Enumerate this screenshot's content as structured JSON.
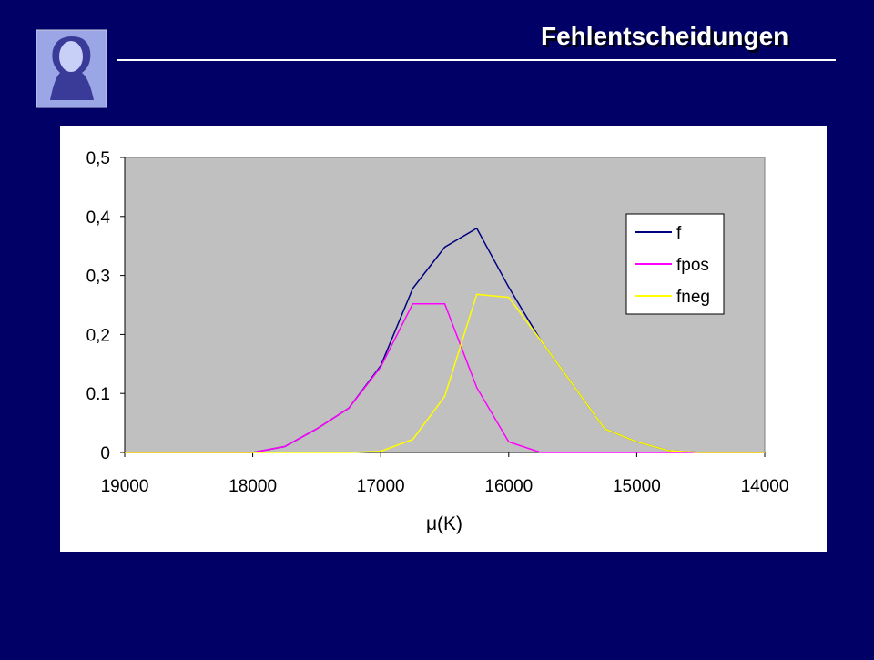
{
  "slide_title": "Fehlentscheidungen",
  "chart_data": {
    "type": "line",
    "x_label": "μ(K)",
    "x": [
      19000,
      18750,
      18500,
      18250,
      18000,
      17750,
      17500,
      17250,
      17000,
      16750,
      16500,
      16250,
      16000,
      15750,
      15500,
      15250,
      15000,
      14750,
      14500,
      14250,
      14000
    ],
    "series": [
      {
        "name": "f",
        "color": "#000080",
        "values": [
          0,
          0,
          0,
          0,
          0,
          0.01,
          0.04,
          0.075,
          0.147,
          0.278,
          0.348,
          0.38,
          0.28,
          0.19,
          0.115,
          0.04,
          0.018,
          0.003,
          0,
          0,
          0
        ]
      },
      {
        "name": "fpos",
        "color": "#ff00ff",
        "values": [
          0,
          0,
          0,
          0,
          0,
          0.01,
          0.04,
          0.075,
          0.145,
          0.252,
          0.252,
          0.11,
          0.018,
          0,
          0,
          0,
          0,
          0,
          0,
          0,
          0
        ]
      },
      {
        "name": "fneg",
        "color": "#ffff00",
        "values": [
          0,
          0,
          0,
          0,
          0,
          0,
          0,
          0,
          0.002,
          0.022,
          0.095,
          0.268,
          0.263,
          0.19,
          0.115,
          0.04,
          0.018,
          0.003,
          0,
          0,
          0
        ]
      }
    ],
    "xlim": [
      19000,
      14000
    ],
    "xticks": [
      19000,
      18000,
      17000,
      16000,
      15000,
      14000
    ],
    "ylim": [
      0,
      0.5
    ],
    "yticks": [
      0,
      0.1,
      {
        "value": 0.2,
        "label": "0,2"
      },
      {
        "value": 0.3,
        "label": "0,3"
      },
      {
        "value": 0.4,
        "label": "0,4"
      },
      {
        "value": 0.5,
        "label": "0,5"
      }
    ],
    "grid": false,
    "legend": "upper right"
  }
}
